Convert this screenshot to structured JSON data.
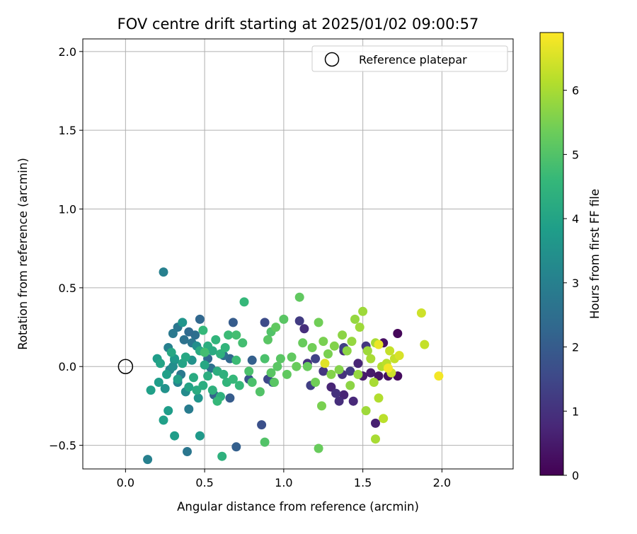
{
  "chart_data": {
    "type": "scatter",
    "title": "FOV centre drift starting at 2025/01/02 09:00:57",
    "xlabel": "Angular distance from reference (arcmin)",
    "ylabel": "Rotation from reference (arcmin)",
    "xlim": [
      -0.27,
      2.45
    ],
    "ylim": [
      -0.65,
      2.08
    ],
    "xticks": [
      0.0,
      0.5,
      1.0,
      1.5,
      2.0
    ],
    "xtick_labels": [
      "0.0",
      "0.5",
      "1.0",
      "1.5",
      "2.0"
    ],
    "yticks": [
      -0.5,
      0.0,
      0.5,
      1.0,
      1.5,
      2.0
    ],
    "ytick_labels": [
      "−0.5",
      "0.0",
      "0.5",
      "1.0",
      "1.5",
      "2.0"
    ],
    "grid": true,
    "colormap": "viridis",
    "colorbar": {
      "label": "Hours from first FF file",
      "range": [
        0,
        6.9
      ],
      "ticks": [
        0,
        1,
        2,
        3,
        4,
        5,
        6
      ],
      "tick_labels": [
        "0",
        "1",
        "2",
        "3",
        "4",
        "5",
        "6"
      ]
    },
    "legend": {
      "placement": "upper right",
      "entries": [
        {
          "label": "Reference platepar",
          "marker": "open-circle"
        }
      ]
    },
    "reference_point": {
      "x": 0.0,
      "y": 0.0
    },
    "series": [
      {
        "points": [
          [
            1.72,
            0.21,
            0.1
          ],
          [
            1.72,
            -0.06,
            0.2
          ],
          [
            1.66,
            -0.06,
            0.3
          ],
          [
            1.6,
            -0.06,
            0.35
          ],
          [
            1.63,
            0.15,
            0.3
          ],
          [
            1.58,
            -0.36,
            0.6
          ],
          [
            1.55,
            -0.04,
            0.5
          ],
          [
            1.5,
            -0.06,
            0.5
          ],
          [
            1.47,
            0.02,
            0.7
          ],
          [
            1.44,
            -0.22,
            0.8
          ],
          [
            1.38,
            -0.18,
            0.7
          ],
          [
            1.38,
            0.1,
            0.9
          ],
          [
            1.37,
            -0.05,
            1.0
          ],
          [
            1.35,
            -0.22,
            0.9
          ],
          [
            1.3,
            -0.13,
            0.7
          ],
          [
            1.33,
            -0.17,
            1.0
          ],
          [
            1.25,
            -0.03,
            1.1
          ],
          [
            1.13,
            0.24,
            0.9
          ],
          [
            1.1,
            0.29,
            1.2
          ],
          [
            1.15,
            0.02,
            1.0
          ],
          [
            1.17,
            -0.12,
            1.3
          ],
          [
            1.38,
            0.12,
            1.3
          ],
          [
            1.42,
            -0.03,
            1.2
          ],
          [
            1.2,
            0.05,
            1.4
          ],
          [
            1.52,
            0.13,
            1.1
          ],
          [
            0.88,
            0.28,
            1.6
          ],
          [
            0.9,
            -0.08,
            1.5
          ],
          [
            0.86,
            -0.37,
            1.7
          ],
          [
            0.93,
            -0.1,
            1.9
          ],
          [
            0.8,
            0.04,
            2.1
          ],
          [
            0.78,
            -0.08,
            1.8
          ],
          [
            0.68,
            0.28,
            2.0
          ],
          [
            0.7,
            -0.51,
            2.1
          ],
          [
            0.66,
            -0.2,
            2.0
          ],
          [
            0.66,
            0.05,
            2.3
          ],
          [
            0.62,
            0.07,
            2.5
          ],
          [
            0.56,
            -0.18,
            2.2
          ],
          [
            0.54,
            -0.01,
            2.6
          ],
          [
            0.52,
            0.05,
            2.4
          ],
          [
            0.47,
            0.3,
            2.3
          ],
          [
            0.44,
            0.2,
            2.5
          ],
          [
            0.42,
            0.15,
            2.7
          ],
          [
            0.4,
            0.22,
            2.4
          ],
          [
            0.39,
            -0.54,
            2.7
          ],
          [
            0.37,
            0.17,
            2.6
          ],
          [
            0.4,
            -0.27,
            2.9
          ],
          [
            0.35,
            -0.05,
            2.8
          ],
          [
            0.33,
            0.25,
            2.7
          ],
          [
            0.3,
            0.21,
            2.8
          ],
          [
            0.27,
            0.12,
            3.0
          ],
          [
            0.24,
            0.6,
            3.0
          ],
          [
            0.14,
            -0.59,
            3.0
          ],
          [
            0.28,
            -0.02,
            3.2
          ],
          [
            0.31,
            0.04,
            3.3
          ],
          [
            0.33,
            -0.1,
            3.1
          ],
          [
            0.3,
            0.0,
            3.4
          ],
          [
            0.38,
            -0.16,
            3.3
          ],
          [
            0.42,
            0.04,
            3.5
          ],
          [
            0.45,
            0.13,
            3.4
          ],
          [
            0.46,
            -0.2,
            3.6
          ],
          [
            0.25,
            -0.14,
            3.5
          ],
          [
            0.36,
            0.28,
            3.6
          ],
          [
            0.31,
            0.05,
            3.7
          ],
          [
            0.2,
            0.05,
            3.8
          ],
          [
            0.27,
            -0.28,
            3.8
          ],
          [
            0.24,
            -0.34,
            3.9
          ],
          [
            0.31,
            -0.44,
            3.8
          ],
          [
            0.47,
            -0.44,
            3.7
          ],
          [
            0.16,
            -0.15,
            3.9
          ],
          [
            0.21,
            -0.1,
            3.8
          ],
          [
            0.22,
            0.02,
            4.0
          ],
          [
            0.26,
            -0.05,
            3.9
          ],
          [
            0.33,
            -0.08,
            3.9
          ],
          [
            0.29,
            0.09,
            4.1
          ],
          [
            0.4,
            -0.13,
            4.0
          ],
          [
            0.36,
            0.02,
            4.0
          ],
          [
            0.38,
            0.06,
            4.1
          ],
          [
            0.43,
            -0.07,
            4.2
          ],
          [
            0.47,
            0.1,
            4.2
          ],
          [
            0.45,
            -0.15,
            4.2
          ],
          [
            0.5,
            0.01,
            4.1
          ],
          [
            0.52,
            -0.06,
            4.3
          ],
          [
            0.49,
            -0.12,
            4.3
          ],
          [
            0.52,
            0.13,
            4.3
          ],
          [
            0.55,
            0.1,
            4.2
          ],
          [
            0.58,
            -0.03,
            4.3
          ],
          [
            0.55,
            -0.15,
            4.4
          ],
          [
            0.6,
            0.08,
            4.4
          ],
          [
            0.62,
            -0.05,
            4.4
          ],
          [
            0.6,
            -0.19,
            4.4
          ],
          [
            0.63,
            0.12,
            4.5
          ],
          [
            0.57,
            0.17,
            4.5
          ],
          [
            0.58,
            -0.22,
            4.6
          ],
          [
            0.61,
            -0.57,
            4.4
          ],
          [
            0.64,
            -0.1,
            4.5
          ],
          [
            0.65,
            0.2,
            4.7
          ],
          [
            0.68,
            -0.08,
            4.6
          ],
          [
            0.7,
            0.04,
            4.7
          ],
          [
            0.72,
            -0.12,
            4.6
          ],
          [
            0.74,
            0.15,
            4.8
          ],
          [
            0.7,
            0.2,
            4.8
          ],
          [
            0.75,
            0.41,
            4.6
          ],
          [
            0.49,
            0.23,
            4.6
          ],
          [
            0.5,
            0.09,
            4.8
          ],
          [
            0.78,
            -0.03,
            4.9
          ],
          [
            0.8,
            -0.1,
            4.9
          ],
          [
            0.85,
            -0.16,
            5.0
          ],
          [
            0.88,
            0.05,
            4.9
          ],
          [
            0.9,
            0.17,
            5.1
          ],
          [
            0.92,
            0.22,
            5.0
          ],
          [
            0.88,
            -0.48,
            5.0
          ],
          [
            0.92,
            -0.04,
            5.1
          ],
          [
            0.94,
            -0.1,
            5.1
          ],
          [
            0.96,
            0.0,
            5.1
          ],
          [
            0.98,
            0.05,
            5.1
          ],
          [
            1.0,
            0.3,
            5.1
          ],
          [
            0.95,
            0.25,
            5.2
          ],
          [
            1.02,
            -0.05,
            5.2
          ],
          [
            1.05,
            0.06,
            5.2
          ],
          [
            1.08,
            0.0,
            5.3
          ],
          [
            1.1,
            0.44,
            5.2
          ],
          [
            1.12,
            0.15,
            5.3
          ],
          [
            1.15,
            0.0,
            5.3
          ],
          [
            1.18,
            0.12,
            5.4
          ],
          [
            1.2,
            -0.1,
            5.4
          ],
          [
            1.22,
            0.28,
            5.4
          ],
          [
            1.25,
            0.16,
            5.5
          ],
          [
            1.28,
            0.08,
            5.5
          ],
          [
            1.22,
            -0.52,
            5.3
          ],
          [
            1.24,
            -0.25,
            5.5
          ],
          [
            1.3,
            -0.05,
            5.6
          ],
          [
            1.32,
            0.13,
            5.6
          ],
          [
            1.35,
            -0.02,
            5.6
          ],
          [
            1.37,
            0.2,
            5.7
          ],
          [
            1.4,
            0.1,
            5.7
          ],
          [
            1.42,
            -0.12,
            5.7
          ],
          [
            1.43,
            0.16,
            5.8
          ],
          [
            1.45,
            0.3,
            5.8
          ],
          [
            1.47,
            -0.05,
            5.8
          ],
          [
            1.48,
            0.25,
            5.9
          ],
          [
            1.5,
            0.35,
            5.9
          ],
          [
            1.52,
            -0.28,
            5.9
          ],
          [
            1.53,
            0.1,
            5.9
          ],
          [
            1.55,
            0.05,
            6.0
          ],
          [
            1.57,
            -0.1,
            6.0
          ],
          [
            1.58,
            0.15,
            6.0
          ],
          [
            1.6,
            -0.2,
            6.1
          ],
          [
            1.62,
            0.0,
            6.1
          ],
          [
            1.58,
            -0.46,
            6.0
          ],
          [
            1.63,
            -0.33,
            6.2
          ],
          [
            1.65,
            0.02,
            6.2
          ],
          [
            1.67,
            0.1,
            6.3
          ],
          [
            1.7,
            0.05,
            6.3
          ],
          [
            1.68,
            -0.04,
            6.4
          ],
          [
            1.73,
            0.07,
            6.5
          ],
          [
            1.87,
            0.34,
            6.4
          ],
          [
            1.89,
            0.14,
            6.3
          ],
          [
            1.98,
            -0.06,
            6.8
          ],
          [
            1.26,
            0.02,
            6.6
          ],
          [
            1.6,
            0.14,
            6.7
          ],
          [
            1.66,
            -0.01,
            6.8
          ]
        ]
      }
    ]
  }
}
